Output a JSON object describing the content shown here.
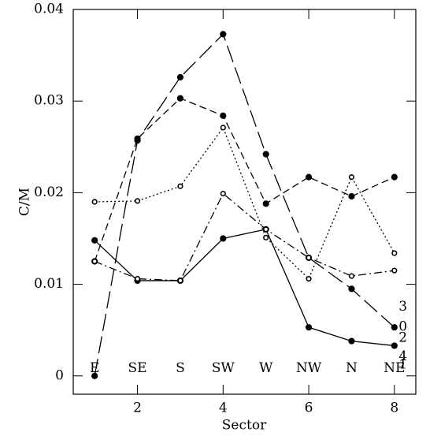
{
  "chart_data": {
    "type": "line",
    "x_label": "Sector",
    "y_label": "C/M",
    "xlim": [
      0.5,
      8.5
    ],
    "ylim": [
      -0.002,
      0.04
    ],
    "xticks": [
      2,
      4,
      6,
      8
    ],
    "yticks": [
      0,
      0.01,
      0.02,
      0.03,
      0.04
    ],
    "x": [
      1,
      2,
      3,
      4,
      5,
      6,
      7,
      8
    ],
    "sector_labels": [
      "E",
      "SE",
      "S",
      "SW",
      "W",
      "NW",
      "N",
      "NE"
    ],
    "sector_label_y": 0.0008,
    "series": [
      {
        "color": "#000000",
        "dash": "solid",
        "marker": "filled",
        "values": [
          0.0148,
          0.0104,
          0.0104,
          0.015,
          0.016,
          0.0053,
          0.0038,
          0.0033
        ]
      },
      {
        "color": "#000000",
        "dash": "long",
        "marker": "filled",
        "values": [
          0.0,
          0.0257,
          0.0326,
          0.0373,
          0.0242,
          0.0129,
          0.0095,
          0.0053
        ]
      },
      {
        "color": "#000000",
        "dash": "short",
        "marker": "filled",
        "values": [
          0.0125,
          0.0259,
          0.0303,
          0.0284,
          0.0188,
          0.0217,
          0.0196,
          0.0217
        ]
      },
      {
        "color": "#000000",
        "dash": "dotted",
        "marker": "open",
        "values": [
          0.019,
          0.0191,
          0.0207,
          0.0271,
          0.0151,
          0.0106,
          0.0217,
          0.0134
        ]
      },
      {
        "color": "#000000",
        "dash": "dashdot",
        "marker": "open",
        "values": [
          0.0125,
          0.0106,
          0.0104,
          0.0199,
          0.016,
          0.0129,
          0.0109,
          0.0115
        ]
      }
    ],
    "annotations": [
      {
        "text": "3",
        "x": 8.2,
        "y": 0.0075
      },
      {
        "text": "0",
        "x": 8.2,
        "y": 0.0053
      },
      {
        "text": "2",
        "x": 8.2,
        "y": 0.0041
      },
      {
        "text": "4",
        "x": 8.2,
        "y": 0.0021
      },
      {
        "text": "1",
        "x": 8.2,
        "y": 0.0012
      }
    ]
  }
}
